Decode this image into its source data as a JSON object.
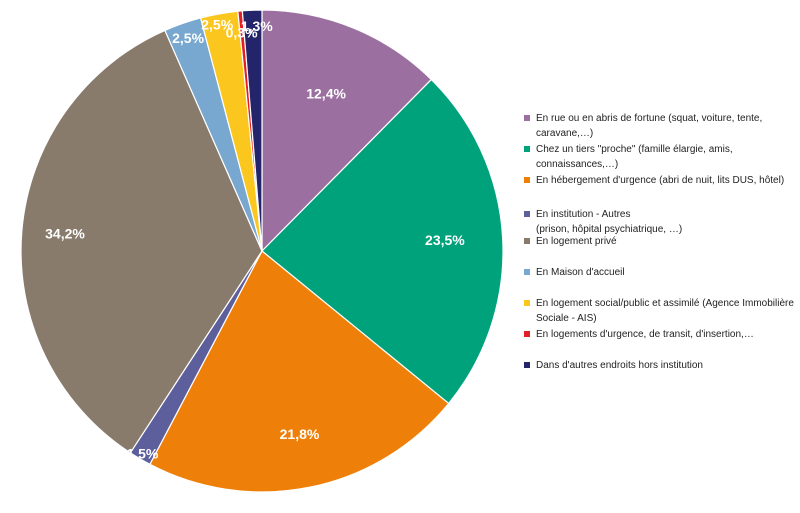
{
  "chart_data": {
    "type": "pie",
    "start_angle_deg": 0,
    "direction": "clockwise",
    "label_unit": "%",
    "slices": [
      {
        "label": "En rue ou en abris de fortune  (squat, voiture, tente,\ncaravane,…)",
        "value": 12.4,
        "value_label": "12,4%",
        "color": "#9b6fa0"
      },
      {
        "label": "Chez un tiers \"proche\" (famille élargie, amis,\nconnaissances,…)",
        "value": 23.5,
        "value_label": "23,5%",
        "color": "#00a27c"
      },
      {
        "label": "En hébergement d'urgence (abri de nuit, lits DUS, hôtel)",
        "value": 21.8,
        "value_label": "21,8%",
        "color": "#ee8009"
      },
      {
        "label": "En institution - Autres\n(prison, hôpital psychiatrique, …)",
        "value": 1.5,
        "value_label": "1,5%",
        "color": "#5c5f9b"
      },
      {
        "label": "En logement privé",
        "value": 34.2,
        "value_label": "34,2%",
        "color": "#887b6c"
      },
      {
        "label": "En Maison d'accueil",
        "value": 2.5,
        "value_label": "2,5%",
        "color": "#78a8d0"
      },
      {
        "label": "En logement social/public et assimilé (Agence Immobilière\nSociale - AIS)",
        "value": 2.5,
        "value_label": "2,5%",
        "color": "#fbc71f"
      },
      {
        "label": "En logements d'urgence, de transit, d'insertion,…",
        "value": 0.3,
        "value_label": "0,3%",
        "color": "#e21f26"
      },
      {
        "label": "Dans d'autres endroits hors institution",
        "value": 1.3,
        "value_label": "1,3%",
        "color": "#24246a"
      }
    ],
    "legend_position": "right"
  }
}
